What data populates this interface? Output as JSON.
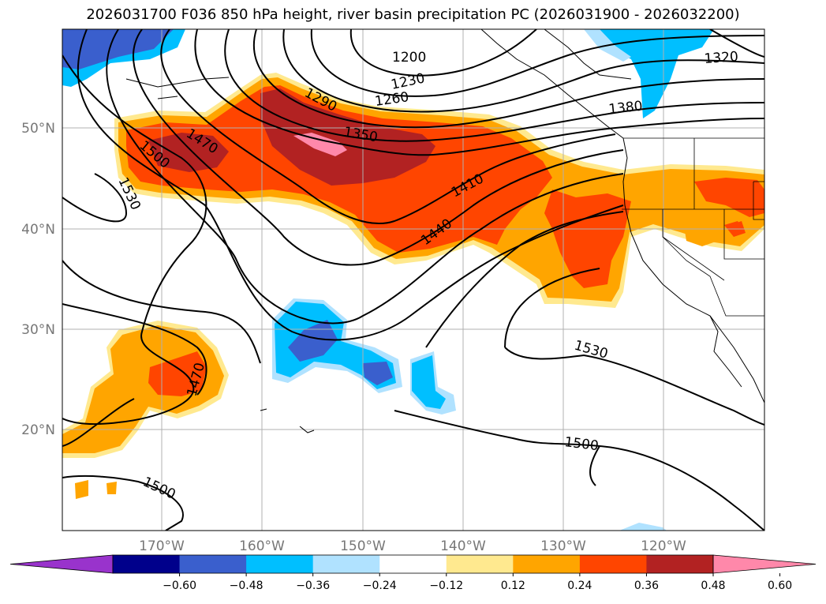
{
  "title": "2026031700 F036 850 hPa height, river basin precipitation PC (2026031900 - 2026032200)",
  "map": {
    "x_ticks": [
      "170°W",
      "160°W",
      "150°W",
      "140°W",
      "130°W",
      "120°W"
    ],
    "y_ticks": [
      "50°N",
      "40°N",
      "30°N",
      "20°N"
    ],
    "contour_labels": [
      "1200",
      "1230",
      "1260",
      "1290",
      "1320",
      "1350",
      "1380",
      "1410",
      "1440",
      "1470",
      "1470",
      "1500",
      "1500",
      "1500",
      "1530",
      "1530"
    ]
  },
  "colorbar": {
    "labels": [
      "−0.60",
      "−0.48",
      "−0.36",
      "−0.24",
      "−0.12",
      "0.12",
      "0.24",
      "0.36",
      "0.48",
      "0.60"
    ],
    "colors": [
      "#9933cc",
      "#00008b",
      "#3a5fcd",
      "#00bfff",
      "#b0e2ff",
      "#ffffff",
      "#ffe98f",
      "#ffa500",
      "#ff4500",
      "#b22222",
      "#ff88aa"
    ]
  }
}
